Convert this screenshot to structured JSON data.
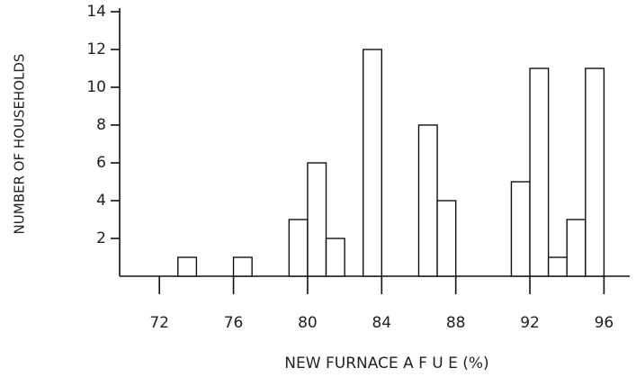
{
  "chart_data": {
    "type": "bar",
    "x_label": "NEW FURNACE A F U E (%)",
    "y_label": "NUMBER OF HOUSEHOLDS",
    "x": [
      73.5,
      76.5,
      79.5,
      80.5,
      81.5,
      83.5,
      86.5,
      87.5,
      91.5,
      92.5,
      93.5,
      94.5,
      95.5
    ],
    "values": [
      1,
      1,
      3,
      6,
      2,
      12,
      8,
      4,
      5,
      11,
      1,
      3,
      11
    ],
    "color": "#ffffff",
    "xlim": [
      70,
      97
    ],
    "xticks": [
      72,
      76,
      80,
      84,
      88,
      92,
      96
    ],
    "ylim": [
      0,
      14
    ],
    "yticks": [
      2,
      4,
      6,
      8,
      10,
      12,
      14
    ],
    "grid": false
  }
}
